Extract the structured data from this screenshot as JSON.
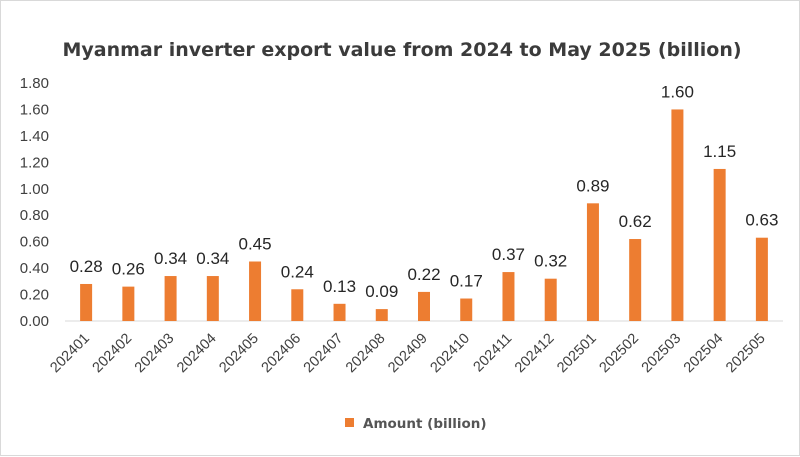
{
  "chart_data": {
    "type": "bar",
    "title": "Myanmar inverter export value from 2024 to May 2025 (billion)",
    "categories": [
      "202401",
      "202402",
      "202403",
      "202404",
      "202405",
      "202406",
      "202407",
      "202408",
      "202409",
      "202410",
      "202411",
      "202412",
      "202501",
      "202502",
      "202503",
      "202504",
      "202505"
    ],
    "series": [
      {
        "name": "Amount (billion)",
        "values": [
          0.28,
          0.26,
          0.34,
          0.34,
          0.45,
          0.24,
          0.13,
          0.09,
          0.22,
          0.17,
          0.37,
          0.32,
          0.89,
          0.62,
          1.6,
          1.15,
          0.63
        ],
        "color": "#ED7D31"
      }
    ],
    "ylim": [
      0,
      1.8
    ],
    "yticks": [
      "0.00",
      "0.20",
      "0.40",
      "0.60",
      "0.80",
      "1.00",
      "1.20",
      "1.40",
      "1.60",
      "1.80"
    ],
    "xlabel": "",
    "ylabel": "",
    "grid": false,
    "legend_position": "bottom"
  }
}
